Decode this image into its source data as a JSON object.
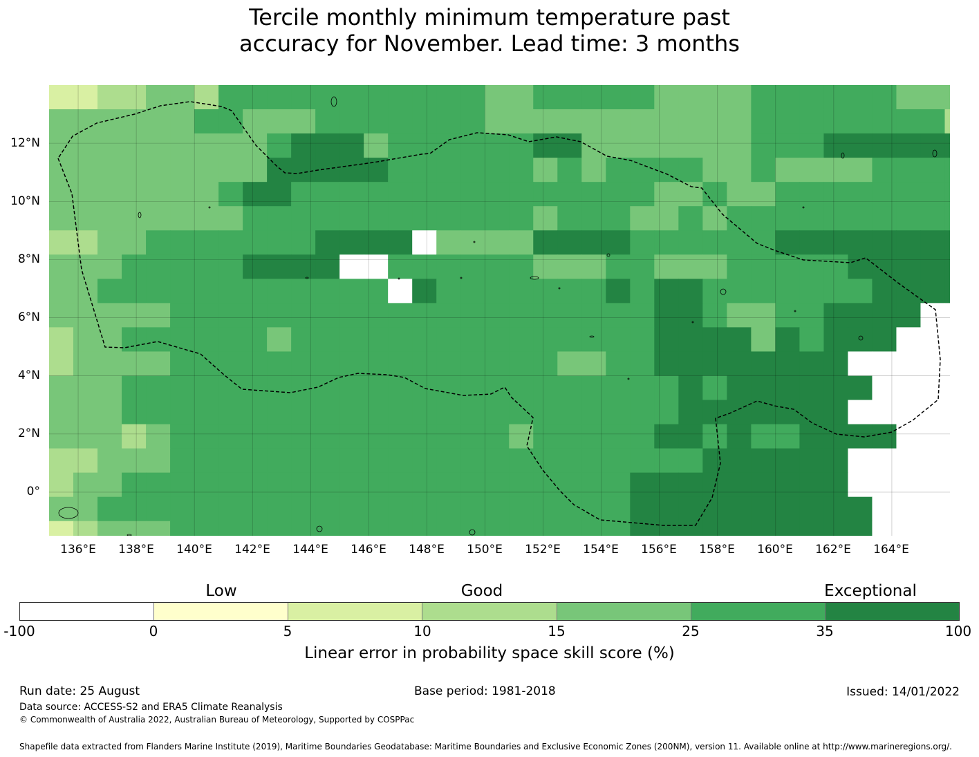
{
  "title_line1": "Tercile monthly minimum temperature past",
  "title_line2": "accuracy for November. Lead time: 3 months",
  "map": {
    "lon_labels": [
      "136°E",
      "138°E",
      "140°E",
      "142°E",
      "144°E",
      "146°E",
      "148°E",
      "150°E",
      "152°E",
      "154°E",
      "156°E",
      "158°E",
      "160°E",
      "162°E",
      "164°E"
    ],
    "lat_labels": [
      "12°N",
      "10°N",
      "8°N",
      "6°N",
      "4°N",
      "2°N",
      "0°"
    ],
    "lon_range": [
      135.0,
      166.0
    ],
    "lat_range": [
      -1.5,
      14.0
    ],
    "cell_size_deg": 0.833,
    "skill_grid_ascii": [
      "2233443555555555554455555444455555544442344455",
      "4444445544455555554444444444455555555344433344",
      "4444444445666455555566444444455566666666666555",
      "444444444666665555554545555445444455555555556",
      "44444445665555555555555554454455555555556555555",
      "4444444455555555555545554454555555555566556555",
      "3344555555566667444466665555556666666666677666",
      "4445555566667755555544455444555556666666666666",
      "4455555555555576555555565665555555666677777777",
      "4444455555555555555555555665445566667777777777",
      "3445555554555555555555555666646566677777777777",
      "3444455555555555555554455666666667777777777777",
      "4445555555555555555555555565666666777777777777",
      "4445555555555555555555555566666667777777777777",
      "4443455555555555555455555665655666677777777777",
      "3344455555555555555555555556666667777777777777",
      "3445555555555555555555556666666667777777777777",
      "4455555555555555555555556666666666777777777777",
      "2344455555555555555555556666666666777777777777",
      "2244455555555555555555566666666666666666666665",
      "1244455555555555555555556666666666666666666665",
      "1244455555555555555555555666666666666664444444",
      "2344455555555555555555555666666655555553333333",
      "2344445555555555555555555566666666444443322001",
      "2334445555555555555555555566666655544433221000",
      "1233344444444444444444445555555554444433221000",
      "2233333333333333333334444555555554444433322110"
    ]
  },
  "colorbar": {
    "category_low": "Low",
    "category_good": "Good",
    "category_exceptional": "Exceptional",
    "ticks": [
      "-100",
      "0",
      "5",
      "10",
      "15",
      "25",
      "35",
      "100"
    ],
    "colors": [
      "#ffffff",
      "#ffffcc",
      "#d9f0a3",
      "#addd8e",
      "#78c679",
      "#41ab5d",
      "#238443"
    ],
    "label": "Linear error in probability space skill score (%)"
  },
  "footer": {
    "run_date": "Run date: 25 August",
    "base_period": "Base period: 1981-2018",
    "issued": "Issued: 14/01/2022",
    "data_source": "Data source: ACCESS-S2 and ERA5 Climate Reanalysis",
    "copyright": "© Commonwealth of Australia 2022, Australian Bureau of Meteorology, Supported by COSPPac",
    "shapefile": "Shapefile data extracted from Flanders Marine Institute (2019), Maritime Boundaries Geodatabase: Maritime Boundaries and Exclusive Economic Zones (200NM), version 11. Available online at http://www.marineregions.org/."
  }
}
